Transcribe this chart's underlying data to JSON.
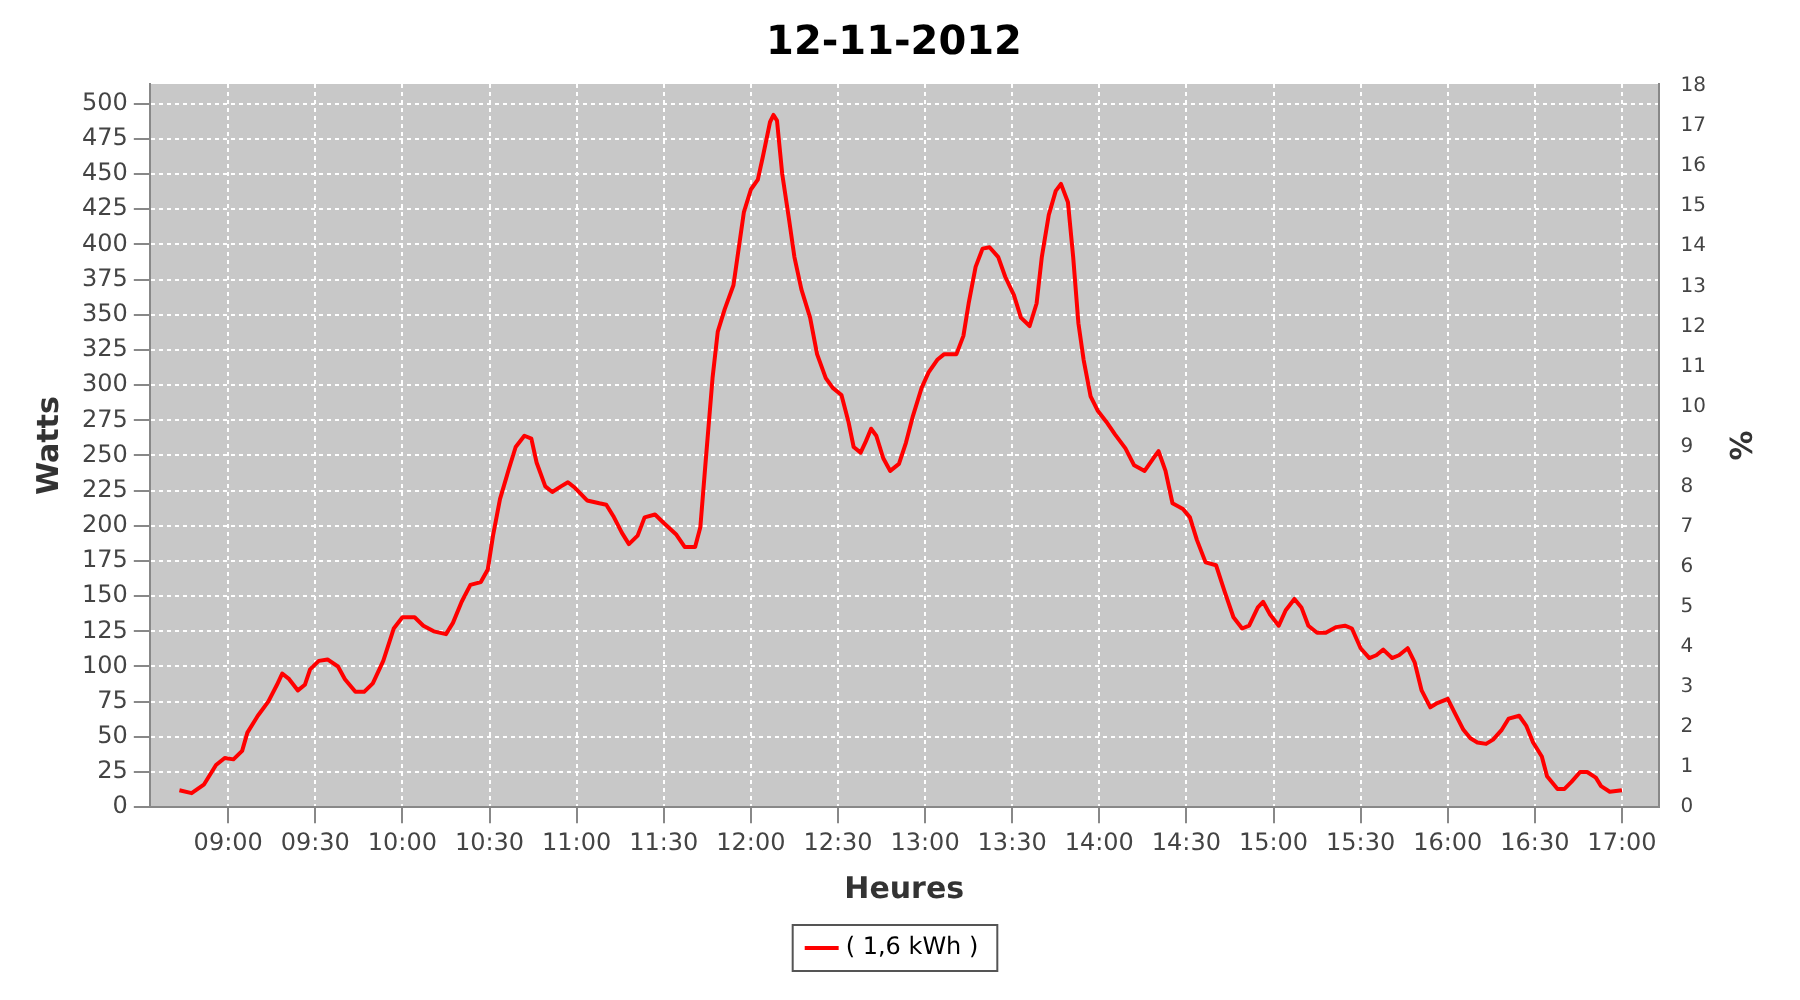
{
  "chart_data": {
    "type": "line",
    "title": "12-11-2012",
    "xlabel": "Heures",
    "ylabel": "Watts",
    "y2label": "%",
    "xlim": [
      8.55,
      17.21
    ],
    "xticks": [
      {
        "value": 9,
        "label": "09:00"
      },
      {
        "value": 9.5,
        "label": "09:30"
      },
      {
        "value": 10,
        "label": "10:00"
      },
      {
        "value": 10.5,
        "label": "10:30"
      },
      {
        "value": 11,
        "label": "11:00"
      },
      {
        "value": 11.5,
        "label": "11:30"
      },
      {
        "value": 12,
        "label": "12:00"
      },
      {
        "value": 12.5,
        "label": "12:30"
      },
      {
        "value": 13,
        "label": "13:00"
      },
      {
        "value": 13.5,
        "label": "13:30"
      },
      {
        "value": 14,
        "label": "14:00"
      },
      {
        "value": 14.5,
        "label": "14:30"
      },
      {
        "value": 15,
        "label": "15:00"
      },
      {
        "value": 15.5,
        "label": "15:30"
      },
      {
        "value": 16,
        "label": "16:00"
      },
      {
        "value": 16.5,
        "label": "16:30"
      },
      {
        "value": 17,
        "label": "17:00"
      }
    ],
    "ylim": [
      0,
      514
    ],
    "yticks": [
      0,
      25,
      50,
      75,
      100,
      125,
      150,
      175,
      200,
      225,
      250,
      275,
      300,
      325,
      350,
      375,
      400,
      425,
      450,
      475,
      500
    ],
    "y2lim": [
      0,
      18.05
    ],
    "y2ticks": [
      0,
      1,
      2,
      3,
      4,
      5,
      6,
      7,
      8,
      9,
      10,
      11,
      12,
      13,
      14,
      15,
      16,
      17,
      18
    ],
    "grid": true,
    "legend": "bottom",
    "series": [
      {
        "name": "( 1,6 kWh )",
        "color": "#ff0000",
        "x": [
          8.72,
          8.79,
          8.86,
          8.93,
          8.98,
          9.03,
          9.08,
          9.11,
          9.17,
          9.23,
          9.28,
          9.31,
          9.35,
          9.4,
          9.44,
          9.47,
          9.52,
          9.57,
          9.63,
          9.67,
          9.73,
          9.78,
          9.83,
          9.89,
          9.95,
          10.0,
          10.07,
          10.12,
          10.18,
          10.25,
          10.29,
          10.34,
          10.39,
          10.45,
          10.49,
          10.52,
          10.56,
          10.61,
          10.65,
          10.7,
          10.74,
          10.77,
          10.82,
          10.86,
          10.91,
          10.95,
          10.99,
          11.06,
          11.13,
          11.17,
          11.21,
          11.26,
          11.3,
          11.35,
          11.39,
          11.45,
          11.5,
          11.57,
          11.62,
          11.68,
          11.71,
          11.74,
          11.78,
          11.81,
          11.85,
          11.9,
          11.93,
          11.96,
          12.0,
          12.04,
          12.07,
          12.11,
          12.13,
          12.15,
          12.18,
          12.22,
          12.25,
          12.29,
          12.34,
          12.38,
          12.43,
          12.47,
          12.52,
          12.56,
          12.59,
          12.63,
          12.66,
          12.69,
          12.72,
          12.76,
          12.8,
          12.85,
          12.89,
          12.93,
          12.98,
          13.02,
          13.07,
          13.11,
          13.18,
          13.22,
          13.25,
          13.29,
          13.33,
          13.37,
          13.42,
          13.46,
          13.51,
          13.55,
          13.6,
          13.64,
          13.67,
          13.71,
          13.75,
          13.78,
          13.82,
          13.85,
          13.88,
          13.91,
          13.95,
          13.99,
          14.04,
          14.09,
          14.15,
          14.2,
          14.26,
          14.31,
          14.34,
          14.38,
          14.42,
          14.48,
          14.52,
          14.56,
          14.61,
          14.67,
          14.72,
          14.77,
          14.82,
          14.86,
          14.91,
          14.94,
          14.98,
          15.03,
          15.07,
          15.12,
          15.16,
          15.2,
          15.25,
          15.3,
          15.36,
          15.41,
          15.45,
          15.5,
          15.55,
          15.59,
          15.63,
          15.68,
          15.72,
          15.77,
          15.81,
          15.85,
          15.9,
          15.94,
          16.0,
          16.04,
          16.09,
          16.13,
          16.17,
          16.22,
          16.26,
          16.31,
          16.35,
          16.41,
          16.45,
          16.49,
          16.54,
          16.57,
          16.63,
          16.67,
          16.71,
          16.76,
          16.8,
          16.85,
          16.88,
          16.93,
          17.0
        ],
        "values": [
          12,
          10,
          16,
          30,
          35,
          34,
          40,
          53,
          65,
          75,
          87,
          95,
          91,
          83,
          87,
          98,
          104,
          105,
          100,
          91,
          82,
          82,
          88,
          104,
          127,
          135,
          135,
          129,
          125,
          123,
          131,
          146,
          158,
          160,
          169,
          193,
          219,
          240,
          256,
          264,
          262,
          245,
          228,
          224,
          228,
          231,
          227,
          218,
          216,
          215,
          207,
          195,
          187,
          193,
          206,
          208,
          202,
          194,
          185,
          185,
          199,
          245,
          305,
          338,
          354,
          371,
          397,
          423,
          439,
          446,
          463,
          487,
          492,
          488,
          450,
          417,
          391,
          368,
          348,
          322,
          305,
          298,
          293,
          274,
          256,
          252,
          260,
          269,
          264,
          248,
          239,
          244,
          259,
          278,
          298,
          309,
          318,
          322,
          322,
          335,
          358,
          384,
          397,
          398,
          391,
          377,
          364,
          348,
          342,
          358,
          391,
          421,
          438,
          443,
          430,
          391,
          344,
          318,
          292,
          282,
          274,
          265,
          255,
          243,
          239,
          248,
          253,
          239,
          216,
          212,
          206,
          190,
          174,
          172,
          153,
          135,
          127,
          129,
          142,
          146,
          137,
          129,
          140,
          148,
          142,
          129,
          124,
          124,
          128,
          129,
          127,
          113,
          106,
          108,
          112,
          106,
          108,
          113,
          103,
          83,
          71,
          74,
          77,
          67,
          55,
          49,
          46,
          45,
          48,
          55,
          63,
          65,
          58,
          46,
          36,
          22,
          13,
          13,
          18,
          25,
          25,
          21,
          15,
          11,
          12
        ]
      }
    ]
  }
}
